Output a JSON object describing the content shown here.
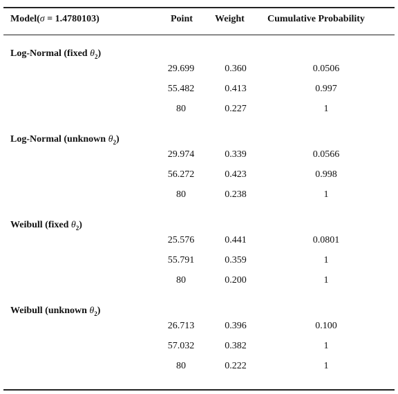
{
  "header": {
    "model_prefix": "Model(",
    "sigma_symbol": "σ",
    "model_value": " = 1.4780103)",
    "point": "Point",
    "weight": "Weight",
    "cumulative": "Cumulative Probability"
  },
  "groups": [
    {
      "title_prefix": "Log-Normal (fixed ",
      "theta": "θ",
      "sub": "2",
      "title_suffix": ")",
      "rows": [
        {
          "point": "29.699",
          "weight": "0.360",
          "cum": "0.0506"
        },
        {
          "point": "55.482",
          "weight": "0.413",
          "cum": "0.997"
        },
        {
          "point": "80",
          "weight": "0.227",
          "cum": "1"
        }
      ]
    },
    {
      "title_prefix": "Log-Normal (unknown ",
      "theta": "θ",
      "sub": "2",
      "title_suffix": ")",
      "rows": [
        {
          "point": "29.974",
          "weight": "0.339",
          "cum": "0.0566"
        },
        {
          "point": "56.272",
          "weight": "0.423",
          "cum": "0.998"
        },
        {
          "point": "80",
          "weight": "0.238",
          "cum": "1"
        }
      ]
    },
    {
      "title_prefix": "Weibull (fixed ",
      "theta": "θ",
      "sub": "2",
      "title_suffix": ")",
      "rows": [
        {
          "point": "25.576",
          "weight": "0.441",
          "cum": "0.0801"
        },
        {
          "point": "55.791",
          "weight": "0.359",
          "cum": "1"
        },
        {
          "point": "80",
          "weight": "0.200",
          "cum": "1"
        }
      ]
    },
    {
      "title_prefix": "Weibull (unknown ",
      "theta": "θ",
      "sub": "2",
      "title_suffix": ")",
      "rows": [
        {
          "point": "26.713",
          "weight": "0.396",
          "cum": "0.100"
        },
        {
          "point": "57.032",
          "weight": "0.382",
          "cum": "1"
        },
        {
          "point": "80",
          "weight": "0.222",
          "cum": "1"
        }
      ]
    }
  ]
}
